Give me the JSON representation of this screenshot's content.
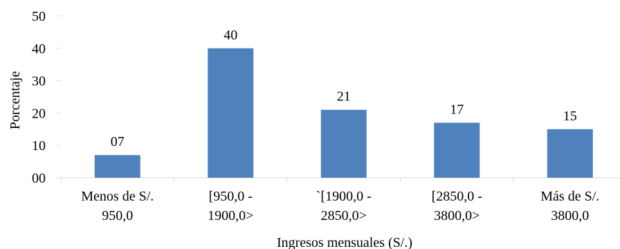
{
  "chart_data": {
    "type": "bar",
    "categories": [
      [
        "Menos de S/.",
        "950,0"
      ],
      [
        "[950,0 -",
        "1900,0>"
      ],
      [
        "`[1900,0 -",
        "2850,0>"
      ],
      [
        "[2850,0 -",
        "3800,0>"
      ],
      [
        "Más de S/.",
        "3800,0"
      ]
    ],
    "values": [
      7,
      40,
      21,
      17,
      15
    ],
    "data_labels": [
      "07",
      "40",
      "21",
      "17",
      "15"
    ],
    "xlabel": "Ingresos mensuales (S/.)",
    "ylabel": "Porcentaje",
    "ylim": [
      0,
      50
    ],
    "yticks": [
      0,
      10,
      20,
      30,
      40,
      50
    ],
    "ytick_labels": [
      "00",
      "10",
      "20",
      "30",
      "40",
      "50"
    ],
    "bar_color": "#4f81bd",
    "grid": false,
    "legend": "none"
  }
}
